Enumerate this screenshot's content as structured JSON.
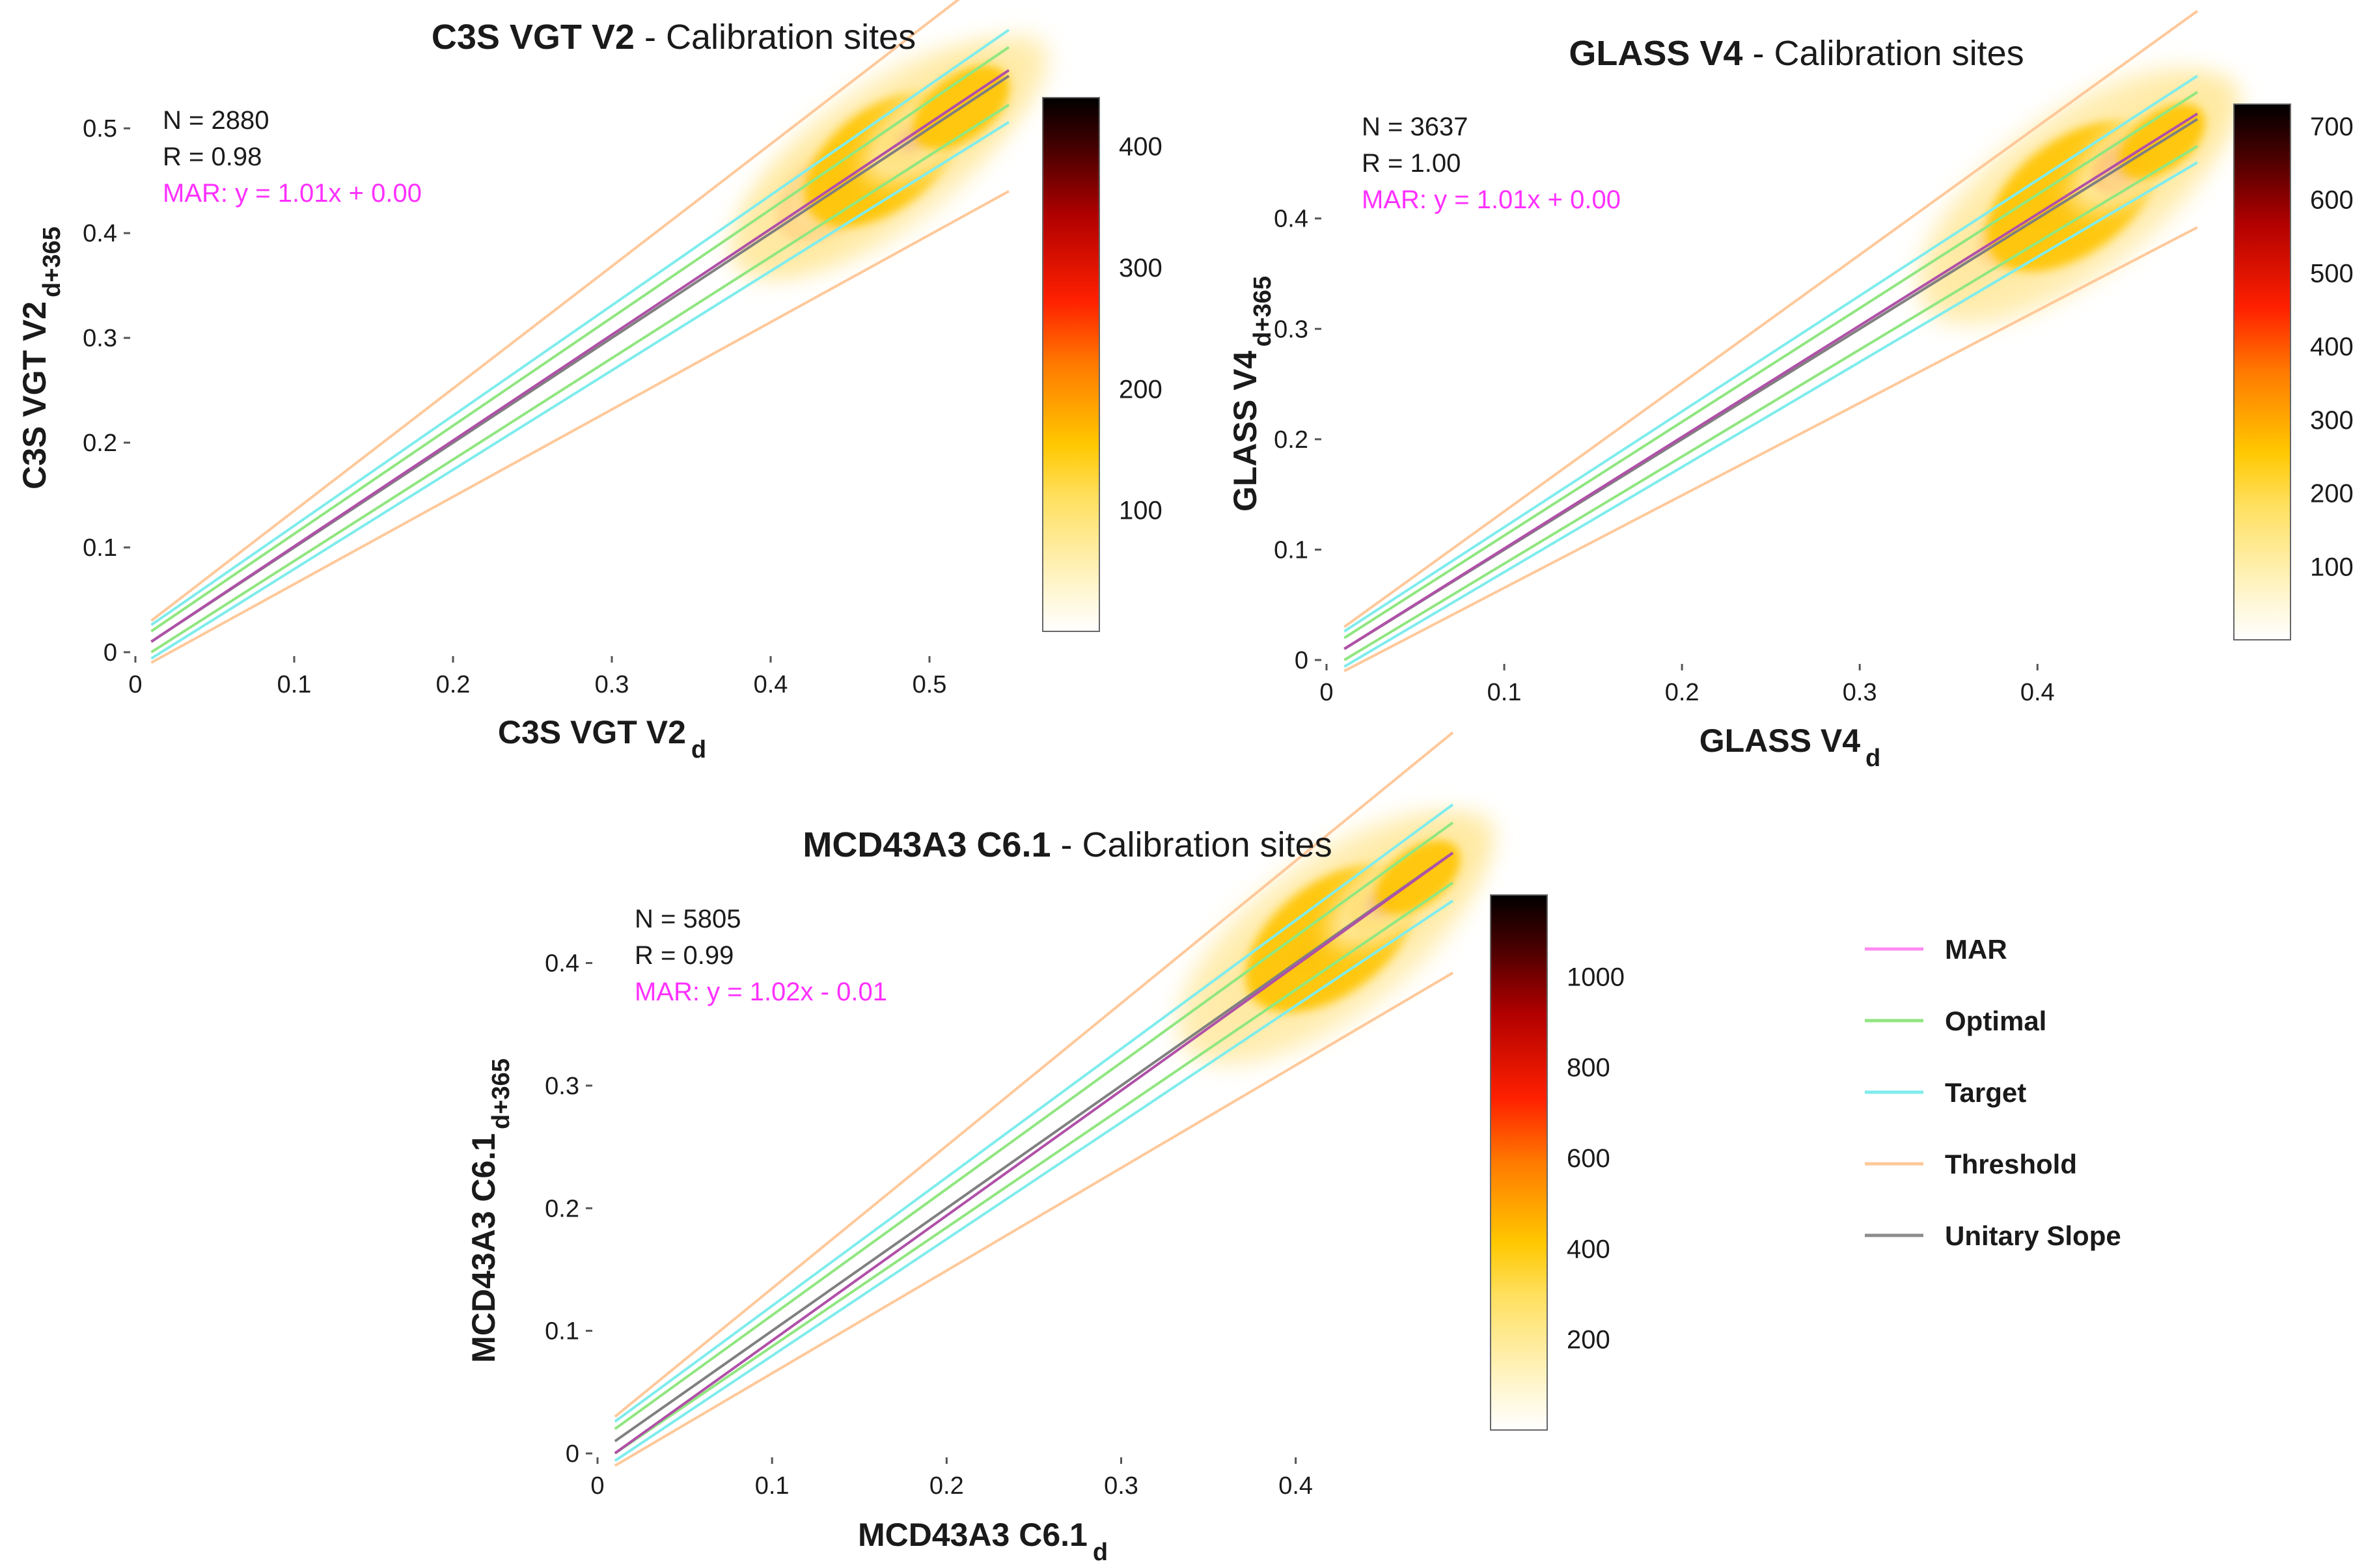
{
  "chart_data": [
    {
      "type": "scatter",
      "subtype": "density",
      "title_bold": "C3S VGT V2",
      "title_rest": " - Calibration sites",
      "xlabel_main": "C3S VGT V2",
      "xlabel_sub": "d",
      "ylabel_main": "C3S VGT V2",
      "ylabel_sub": "d+365",
      "xlim": [
        0,
        0.55
      ],
      "ylim": [
        0,
        0.52
      ],
      "xticks": [
        0,
        0.1,
        0.2,
        0.3,
        0.4,
        0.5
      ],
      "xtick_labels": [
        "0",
        "0.1",
        "0.2",
        "0.3",
        "0.4",
        "0.5"
      ],
      "yticks": [
        0,
        0.1,
        0.2,
        0.3,
        0.4,
        0.5
      ],
      "ytick_labels": [
        "0",
        "0.1",
        "0.2",
        "0.3",
        "0.4",
        "0.5"
      ],
      "stats": {
        "n": "N = 2880",
        "r": "R = 0.98",
        "mar": "MAR: y = 1.01x + 0.00"
      },
      "mar_fit": {
        "slope": 1.01,
        "intercept": 0.0
      },
      "line_range": [
        0.01,
        0.55
      ],
      "density_peaks": [
        {
          "x": 0.44,
          "y": 0.44,
          "level": 0.85,
          "spread": 0.03
        },
        {
          "x": 0.45,
          "y": 0.45,
          "level": 1.0,
          "spread": 0.015
        },
        {
          "x": 0.47,
          "y": 0.47,
          "level": 0.5,
          "spread": 0.04
        },
        {
          "x": 0.49,
          "y": 0.49,
          "level": 0.7,
          "spread": 0.015
        },
        {
          "x": 0.52,
          "y": 0.52,
          "level": 0.45,
          "spread": 0.025
        }
      ],
      "colorbar": {
        "min": 0,
        "max": 440,
        "ticks": [
          100,
          200,
          300,
          400
        ],
        "tick_labels": [
          "100",
          "200",
          "300",
          "400"
        ]
      }
    },
    {
      "type": "scatter",
      "subtype": "density",
      "title_bold": "GLASS V4",
      "title_rest": " - Calibration sites",
      "xlabel_main": "GLASS V4",
      "xlabel_sub": "d",
      "ylabel_main": "GLASS V4",
      "ylabel_sub": "d+365",
      "xlim": [
        0,
        0.49
      ],
      "ylim": [
        0,
        0.48
      ],
      "xticks": [
        0,
        0.1,
        0.2,
        0.3,
        0.4
      ],
      "xtick_labels": [
        "0",
        "0.1",
        "0.2",
        "0.3",
        "0.4"
      ],
      "yticks": [
        0,
        0.1,
        0.2,
        0.3,
        0.4
      ],
      "ytick_labels": [
        "0",
        "0.1",
        "0.2",
        "0.3",
        "0.4"
      ],
      "stats": {
        "n": "N = 3637",
        "r": "R = 1.00",
        "mar": "MAR: y = 1.01x + 0.00"
      },
      "mar_fit": {
        "slope": 1.01,
        "intercept": 0.0
      },
      "line_range": [
        0.01,
        0.49
      ],
      "density_peaks": [
        {
          "x": 0.39,
          "y": 0.39,
          "level": 0.8,
          "spread": 0.02
        },
        {
          "x": 0.41,
          "y": 0.41,
          "level": 1.0,
          "spread": 0.015
        },
        {
          "x": 0.42,
          "y": 0.42,
          "level": 0.5,
          "spread": 0.04
        },
        {
          "x": 0.45,
          "y": 0.45,
          "level": 0.75,
          "spread": 0.015
        },
        {
          "x": 0.47,
          "y": 0.47,
          "level": 0.4,
          "spread": 0.02
        }
      ],
      "colorbar": {
        "min": 0,
        "max": 730,
        "ticks": [
          100,
          200,
          300,
          400,
          500,
          600,
          700
        ],
        "tick_labels": [
          "100",
          "200",
          "300",
          "400",
          "500",
          "600",
          "700"
        ]
      }
    },
    {
      "type": "scatter",
      "subtype": "density",
      "title_bold": "MCD43A3 C6.1",
      "title_rest": " - Calibration sites",
      "xlabel_main": "MCD43A3 C6.1",
      "xlabel_sub": "d",
      "ylabel_main": "MCD43A3 C6.1",
      "ylabel_sub": "d+365",
      "xlim": [
        0,
        0.49
      ],
      "ylim": [
        0,
        0.49
      ],
      "xticks": [
        0,
        0.1,
        0.2,
        0.3,
        0.4
      ],
      "xtick_labels": [
        "0",
        "0.1",
        "0.2",
        "0.3",
        "0.4"
      ],
      "yticks": [
        0,
        0.1,
        0.2,
        0.3,
        0.4
      ],
      "ytick_labels": [
        "0",
        "0.1",
        "0.2",
        "0.3",
        "0.4"
      ],
      "stats": {
        "n": "N = 5805",
        "r": "R = 0.99",
        "mar": "MAR: y = 1.02x - 0.01"
      },
      "mar_fit": {
        "slope": 1.02,
        "intercept": -0.01
      },
      "line_range": [
        0.01,
        0.49
      ],
      "density_peaks": [
        {
          "x": 0.39,
          "y": 0.39,
          "level": 0.7,
          "spread": 0.015
        },
        {
          "x": 0.41,
          "y": 0.41,
          "level": 1.0,
          "spread": 0.015
        },
        {
          "x": 0.42,
          "y": 0.42,
          "level": 0.5,
          "spread": 0.04
        },
        {
          "x": 0.45,
          "y": 0.45,
          "level": 0.7,
          "spread": 0.015
        },
        {
          "x": 0.47,
          "y": 0.47,
          "level": 0.35,
          "spread": 0.02
        }
      ],
      "colorbar": {
        "min": 0,
        "max": 1180,
        "ticks": [
          200,
          400,
          600,
          800,
          1000
        ],
        "tick_labels": [
          "200",
          "400",
          "600",
          "800",
          "1000"
        ]
      }
    }
  ],
  "legend": {
    "items": [
      {
        "label": "MAR",
        "color": "#ff8cf0"
      },
      {
        "label": "Optimal",
        "color": "#90e680"
      },
      {
        "label": "Target",
        "color": "#7fecec"
      },
      {
        "label": "Threshold",
        "color": "#ffc89a"
      },
      {
        "label": "Unitary Slope",
        "color": "#8c8c8c"
      }
    ]
  },
  "colors": {
    "mar": "#b050a8",
    "unitary": "#808080",
    "optimal": "#90e680",
    "target": "#7fecec",
    "threshold": "#ffc89a",
    "text": "#1a1a1a",
    "mar_text": "#ff30ff",
    "axis": "#555555"
  }
}
